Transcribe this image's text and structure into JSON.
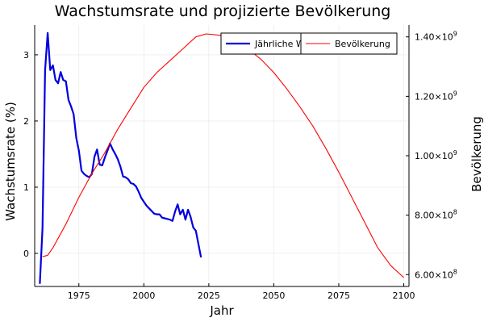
{
  "chart_data": {
    "type": "line",
    "title": "Wachstumsrate und projizierte Bevölkerung",
    "xlabel": "Jahr",
    "ylabel_left": "Wachstumsrate (%)",
    "ylabel_right": "Bevölkerung",
    "xlim": [
      1958,
      2102
    ],
    "ylim_left": [
      -0.5,
      3.45
    ],
    "ylim_right": [
      560000000,
      1440000000
    ],
    "x_ticks": [
      {
        "value": 1975,
        "label": "1975"
      },
      {
        "value": 2000,
        "label": "2000"
      },
      {
        "value": 2025,
        "label": "2025"
      },
      {
        "value": 2050,
        "label": "2050"
      },
      {
        "value": 2075,
        "label": "2075"
      },
      {
        "value": 2100,
        "label": "2100"
      }
    ],
    "y_left_ticks": [
      {
        "value": 0,
        "label": "0"
      },
      {
        "value": 1,
        "label": "1"
      },
      {
        "value": 2,
        "label": "2"
      },
      {
        "value": 3,
        "label": "3"
      }
    ],
    "y_right_ticks": [
      {
        "value": 600000000,
        "mantissa": "6.00",
        "base": "×10",
        "exp": "8"
      },
      {
        "value": 800000000,
        "mantissa": "8.00",
        "base": "×10",
        "exp": "8"
      },
      {
        "value": 1000000000,
        "mantissa": "1.00",
        "base": "×10",
        "exp": "9"
      },
      {
        "value": 1200000000,
        "mantissa": "1.20",
        "base": "×10",
        "exp": "9"
      },
      {
        "value": 1400000000,
        "mantissa": "1.40",
        "base": "×10",
        "exp": "9"
      }
    ],
    "grid": true,
    "legend_position": "top-right",
    "series": [
      {
        "name": "Jährliche Wachstumsrate",
        "legend_label": "Jährliche W",
        "axis": "left",
        "color": "#0000e0",
        "x": [
          1960,
          1961,
          1962,
          1963,
          1964,
          1965,
          1966,
          1967,
          1968,
          1969,
          1970,
          1971,
          1972,
          1973,
          1974,
          1975,
          1976,
          1977,
          1978,
          1979,
          1980,
          1981,
          1982,
          1983,
          1984,
          1985,
          1986,
          1987,
          1988,
          1989,
          1990,
          1991,
          1992,
          1993,
          1994,
          1995,
          1996,
          1997,
          1998,
          1999,
          2000,
          2001,
          2002,
          2003,
          2004,
          2005,
          2006,
          2007,
          2008,
          2009,
          2010,
          2011,
          2012,
          2013,
          2014,
          2015,
          2016,
          2017,
          2018,
          2019,
          2020,
          2021,
          2022
        ],
        "values": [
          -0.46,
          0.38,
          2.77,
          3.33,
          2.77,
          2.84,
          2.62,
          2.57,
          2.74,
          2.62,
          2.6,
          2.32,
          2.22,
          2.1,
          1.74,
          1.55,
          1.25,
          1.2,
          1.17,
          1.15,
          1.2,
          1.46,
          1.57,
          1.34,
          1.33,
          1.45,
          1.55,
          1.66,
          1.57,
          1.5,
          1.42,
          1.31,
          1.16,
          1.15,
          1.12,
          1.06,
          1.05,
          1.01,
          0.93,
          0.84,
          0.78,
          0.72,
          0.68,
          0.64,
          0.6,
          0.59,
          0.59,
          0.54,
          0.53,
          0.52,
          0.51,
          0.49,
          0.63,
          0.74,
          0.59,
          0.66,
          0.51,
          0.66,
          0.55,
          0.39,
          0.34,
          0.14,
          -0.06
        ]
      },
      {
        "name": "Bevölkerung",
        "legend_label": "Bevölkerung",
        "axis": "right",
        "color": "#ff0000",
        "x": [
          1961,
          1963,
          1965,
          1970,
          1975,
          1980,
          1985,
          1990,
          1995,
          2000,
          2005,
          2010,
          2015,
          2020,
          2024,
          2030,
          2035,
          2040,
          2045,
          2050,
          2055,
          2060,
          2065,
          2070,
          2075,
          2080,
          2085,
          2090,
          2095,
          2100
        ],
        "values": [
          660000000,
          665000000,
          690000000,
          770000000,
          860000000,
          940000000,
          1010000000,
          1090000000,
          1160000000,
          1230000000,
          1280000000,
          1320000000,
          1360000000,
          1400000000,
          1410000000,
          1405000000,
          1388000000,
          1360000000,
          1325000000,
          1280000000,
          1225000000,
          1165000000,
          1100000000,
          1025000000,
          945000000,
          860000000,
          775000000,
          690000000,
          630000000,
          590000000
        ]
      }
    ]
  }
}
